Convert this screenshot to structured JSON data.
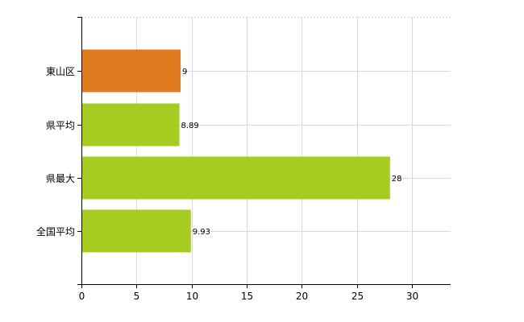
{
  "chart_data": {
    "type": "bar",
    "orientation": "horizontal",
    "categories": [
      "東山区",
      "県平均",
      "県最大",
      "全国平均"
    ],
    "values": [
      9,
      8.89,
      28,
      9.93
    ],
    "value_labels": [
      "9",
      "8.89",
      "28",
      "9.93"
    ],
    "bar_colors": [
      "#e07b20",
      "#a6cc22",
      "#a6cc22",
      "#a6cc22"
    ],
    "xlim": [
      0,
      33.5
    ],
    "x_ticks": [
      0,
      5,
      10,
      15,
      20,
      25,
      30
    ],
    "x_tick_labels": [
      "0",
      "5",
      "10",
      "15",
      "20",
      "25",
      "30"
    ],
    "grid": true,
    "title": "",
    "xlabel": "",
    "ylabel": ""
  }
}
